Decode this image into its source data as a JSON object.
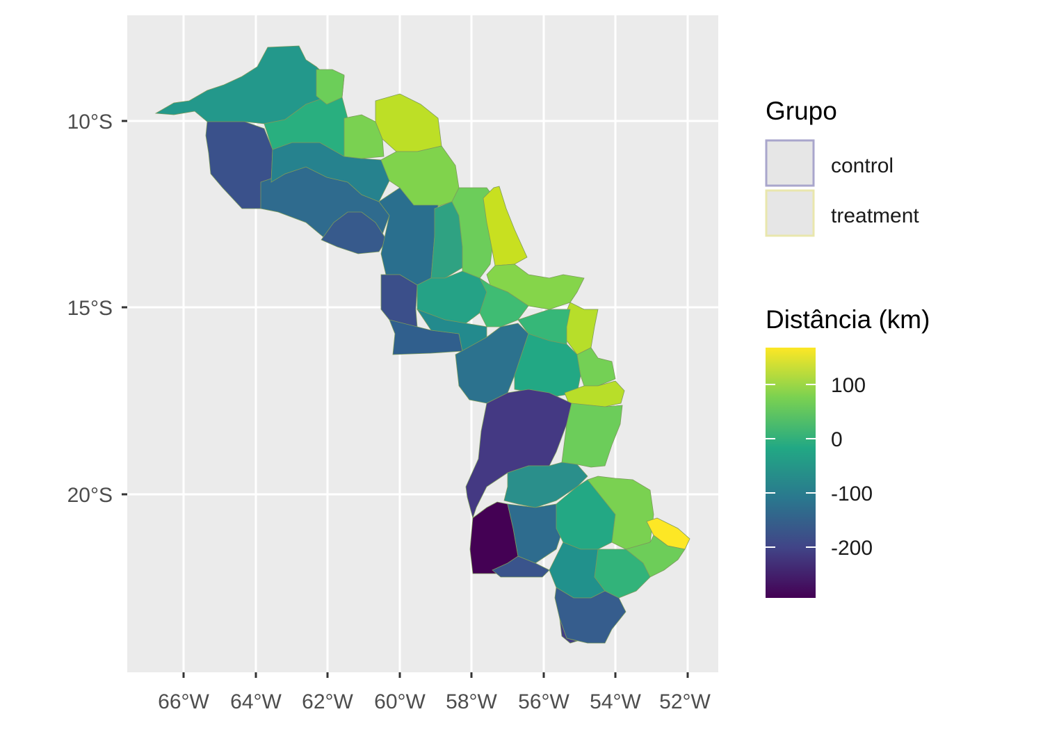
{
  "map": {
    "x_axis_labels": [
      "66°W",
      "64°W",
      "62°W",
      "60°W",
      "58°W",
      "56°W",
      "54°W",
      "52°W"
    ],
    "y_axis_labels": [
      "10°S",
      "15°S",
      "20°S"
    ],
    "background_color": "#ebebeb",
    "grid_color": "#ffffff"
  },
  "legend_group": {
    "title": "Grupo",
    "items": [
      {
        "label": "control",
        "border_color": "#a9a6cc"
      },
      {
        "label": "treatment",
        "border_color": "#e9e7ad"
      }
    ]
  },
  "legend_distance": {
    "title": "Distância (km)",
    "ticks": [
      "100",
      "0",
      "-100",
      "-200"
    ],
    "palette": "viridis",
    "colors": [
      "#fde725",
      "#7ad151",
      "#22a884",
      "#2a788e",
      "#414487",
      "#440154"
    ]
  }
}
